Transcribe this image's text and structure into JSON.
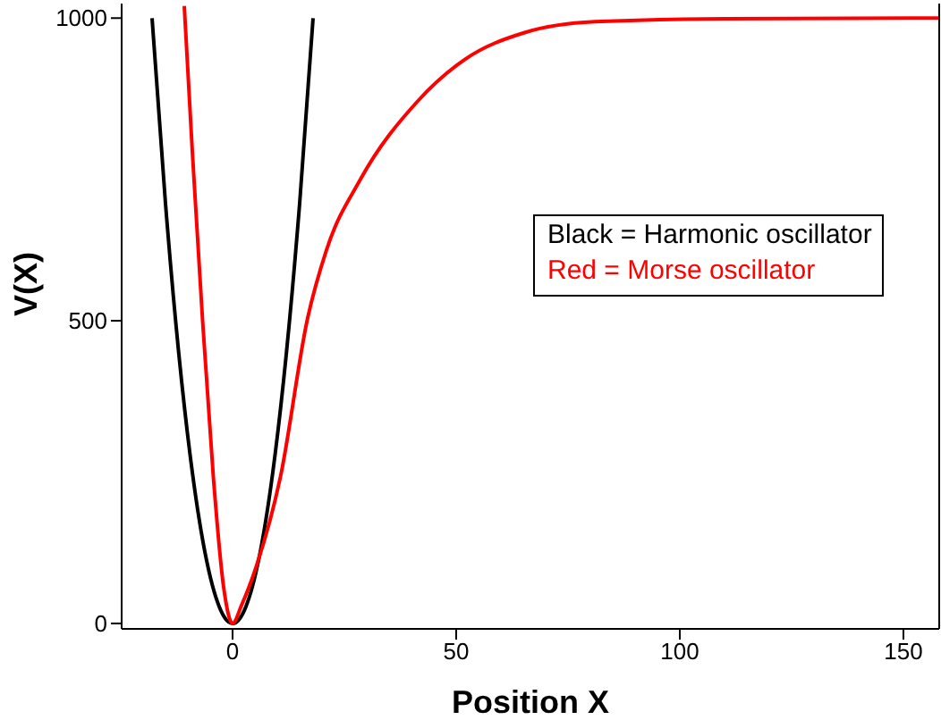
{
  "chart_data": {
    "type": "line",
    "xlabel": "Position X",
    "ylabel": "V(X)",
    "xlim": [
      -24.8,
      158
    ],
    "xticks": [
      0,
      50,
      100,
      150
    ],
    "ylim": [
      -9,
      1024
    ],
    "yticks": [
      0,
      500,
      1000
    ],
    "grid": false,
    "legend": false,
    "marker": "none",
    "line_style": "solid",
    "series": [
      {
        "color": "#000000",
        "x": [
          -18,
          -15,
          -12,
          -9,
          -6,
          -3,
          -1.5,
          0,
          1.5,
          3,
          6,
          9,
          12,
          15,
          18
        ],
        "values": [
          1000,
          694,
          444,
          250,
          111,
          28,
          7,
          0,
          7,
          28,
          111,
          250,
          444,
          694,
          1000
        ]
      },
      {
        "color": "#ff0000",
        "x": [
          -10.8,
          -9,
          -6.7,
          -4.3,
          -2,
          0,
          2,
          5.3,
          10.7,
          16.8,
          21,
          28.7,
          41.3,
          52,
          65.3,
          81,
          110,
          158
        ],
        "values": [
          1020,
          780,
          500,
          242,
          60,
          0,
          30,
          94,
          242,
          505,
          617,
          735,
          862,
          932,
          976,
          994,
          999,
          1000
        ]
      }
    ],
    "annotations": [
      "Black = Harmonic oscillator",
      "Red = Morse oscillator"
    ]
  }
}
